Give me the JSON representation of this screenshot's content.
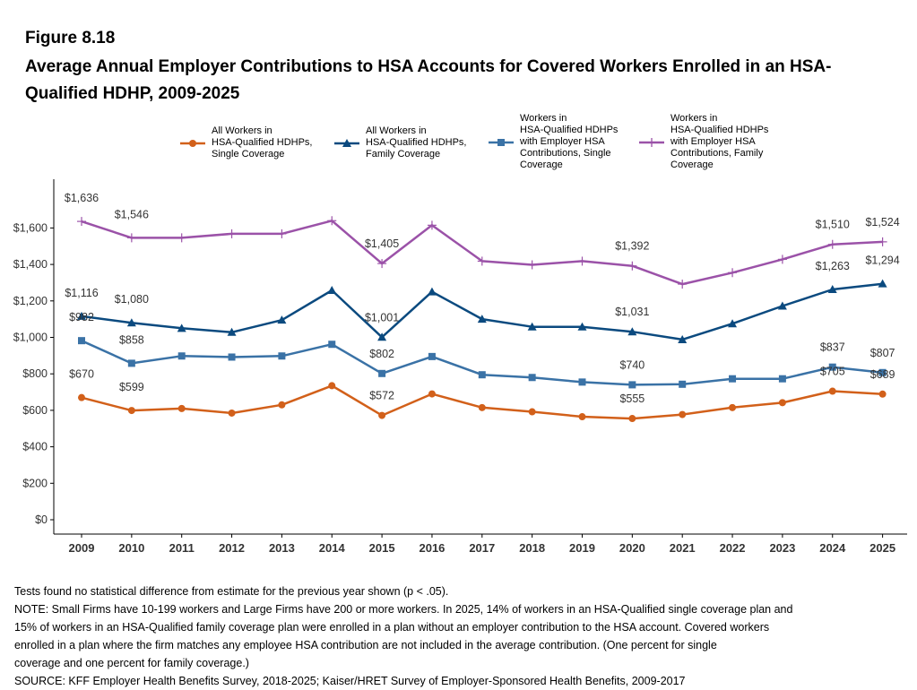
{
  "figure": {
    "label": "Figure 8.18",
    "title": "Average Annual Employer Contributions to HSA Accounts for Covered Workers Enrolled in an HSA-Qualified HDHP, 2009-2025"
  },
  "legend": [
    {
      "label": "All Workers in\nHSA-Qualified HDHPs,\nSingle Coverage"
    },
    {
      "label": "All Workers in\nHSA-Qualified HDHPs,\nFamily Coverage"
    },
    {
      "label": "Workers in\nHSA-Qualified HDHPs\nwith Employer HSA\nContributions, Single\nCoverage"
    },
    {
      "label": "Workers in\nHSA-Qualified HDHPs\nwith Employer HSA\nContributions, Family\nCoverage"
    }
  ],
  "chart_data": {
    "type": "line",
    "x": [
      "2009",
      "2010",
      "2011",
      "2012",
      "2013",
      "2014",
      "2015",
      "2016",
      "2017",
      "2018",
      "2019",
      "2020",
      "2021",
      "2022",
      "2023",
      "2024",
      "2025"
    ],
    "ylim": [
      0,
      1700
    ],
    "yticks": [
      0,
      200,
      400,
      600,
      800,
      1000,
      1200,
      1400,
      1600
    ],
    "ytick_labels": [
      "$0",
      "$200",
      "$400",
      "$600",
      "$800",
      "$1,000",
      "$1,200",
      "$1,400",
      "$1,600"
    ],
    "grid": false,
    "series": [
      {
        "name": "All Workers in HSA-Qualified HDHPs, Single Coverage",
        "color": "#D2601A",
        "marker": "circle",
        "values": [
          670,
          599,
          610,
          585,
          630,
          735,
          572,
          690,
          615,
          592,
          565,
          555,
          577,
          615,
          642,
          705,
          689
        ],
        "labels": {
          "0": "$670",
          "1": "$599",
          "6": "$572",
          "11": "$555",
          "15": "$705",
          "16": "$689"
        }
      },
      {
        "name": "All Workers in HSA-Qualified HDHPs, Family Coverage",
        "color": "#0B4A7F",
        "marker": "triangle",
        "values": [
          1116,
          1080,
          1050,
          1028,
          1095,
          1258,
          1001,
          1250,
          1100,
          1058,
          1058,
          1031,
          988,
          1075,
          1172,
          1263,
          1294
        ],
        "labels": {
          "0": "$1,116",
          "1": "$1,080",
          "6": "$1,001",
          "11": "$1,031",
          "15": "$1,263",
          "16": "$1,294"
        }
      },
      {
        "name": "Workers in HSA-Qualified HDHPs with Employer HSA Contributions, Single Coverage",
        "color": "#3A72A6",
        "marker": "square",
        "values": [
          982,
          858,
          898,
          892,
          898,
          962,
          802,
          895,
          795,
          780,
          755,
          740,
          743,
          773,
          773,
          837,
          807
        ],
        "labels": {
          "0": "$982",
          "1": "$858",
          "6": "$802",
          "11": "$740",
          "15": "$837",
          "16": "$807"
        }
      },
      {
        "name": "Workers in HSA-Qualified HDHPs with Employer HSA Contributions, Family Coverage",
        "color": "#9B52A8",
        "marker": "plus",
        "values": [
          1636,
          1546,
          1546,
          1568,
          1568,
          1640,
          1405,
          1615,
          1418,
          1398,
          1418,
          1392,
          1292,
          1355,
          1428,
          1510,
          1524
        ],
        "labels": {
          "0": "$1,636",
          "1": "$1,546",
          "6": "$1,405",
          "11": "$1,392",
          "15": "$1,510",
          "16": "$1,524"
        }
      }
    ]
  },
  "notes": [
    "Tests found no statistical difference from estimate for the previous year shown (p < .05).",
    "NOTE: Small Firms have 10-199 workers and Large Firms have 200 or more workers. In 2025, 14% of workers in an HSA-Qualified single coverage plan and",
    "15% of workers in an HSA-Qualified family coverage plan were enrolled in a plan without an employer contribution to the HSA account. Covered workers",
    "enrolled in a plan where the firm matches any employee HSA contribution are not included in the average contribution. (One percent for single",
    "coverage and one percent for family coverage.)",
    "SOURCE: KFF Employer Health Benefits Survey, 2018-2025; Kaiser/HRET Survey of Employer-Sponsored Health Benefits, 2009-2017"
  ]
}
